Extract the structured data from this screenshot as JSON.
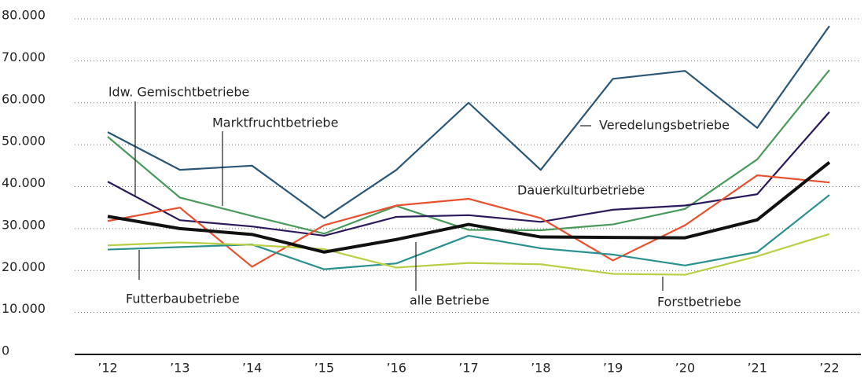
{
  "chart_data": {
    "type": "line",
    "categories": [
      "’12",
      "’13",
      "’14",
      "’15",
      "’16",
      "’17",
      "’18",
      "’19",
      "’20",
      "’21",
      "’22"
    ],
    "ylim": [
      0,
      80000
    ],
    "yticks": [
      0,
      {
        "value": 10000,
        "label": "10.000"
      },
      {
        "value": 20000,
        "label": "20.000"
      },
      {
        "value": 30000,
        "label": "30.000"
      },
      {
        "value": 40000,
        "label": "40.000"
      },
      {
        "value": 50000,
        "label": "50.000"
      },
      {
        "value": 60000,
        "label": "60.000"
      },
      {
        "value": 70000,
        "label": "70.000"
      },
      {
        "value": 80000,
        "label": "80.000"
      }
    ],
    "grid": true,
    "series": [
      {
        "name": "Veredelungsbetriebe",
        "color": "#2a5677",
        "values": [
          53000,
          44000,
          45000,
          32500,
          44000,
          60000,
          44000,
          65700,
          67600,
          54000,
          78300
        ]
      },
      {
        "name": "Marktfruchtbetriebe",
        "color": "#4a9a5c",
        "values": [
          51900,
          37400,
          33000,
          28800,
          35400,
          29700,
          29600,
          31000,
          34700,
          46500,
          67800
        ]
      },
      {
        "name": "ldw. Gemischtbetriebe",
        "color": "#2d1a5c",
        "values": [
          41200,
          32000,
          30500,
          28300,
          32800,
          33200,
          31600,
          34500,
          35500,
          38200,
          57800
        ]
      },
      {
        "name": "Dauerkulturbetriebe",
        "color": "#e8502e",
        "values": [
          31800,
          35000,
          20900,
          30800,
          35500,
          37100,
          32500,
          22400,
          30800,
          42700,
          41000
        ]
      },
      {
        "name": "Futterbaubetriebe",
        "color": "#2a9090",
        "values": [
          25000,
          25600,
          26200,
          20300,
          21700,
          28300,
          25300,
          23800,
          21200,
          24400,
          38000
        ]
      },
      {
        "name": "Forstbetriebe",
        "color": "#b9cf45",
        "values": [
          26000,
          26700,
          26100,
          25100,
          20700,
          21800,
          21500,
          19200,
          19000,
          23400,
          28700
        ]
      },
      {
        "name": "alle Betriebe",
        "color": "#111111",
        "values": [
          32900,
          30000,
          28600,
          24400,
          27400,
          31000,
          28000,
          27900,
          27800,
          32100,
          45800
        ]
      }
    ]
  }
}
